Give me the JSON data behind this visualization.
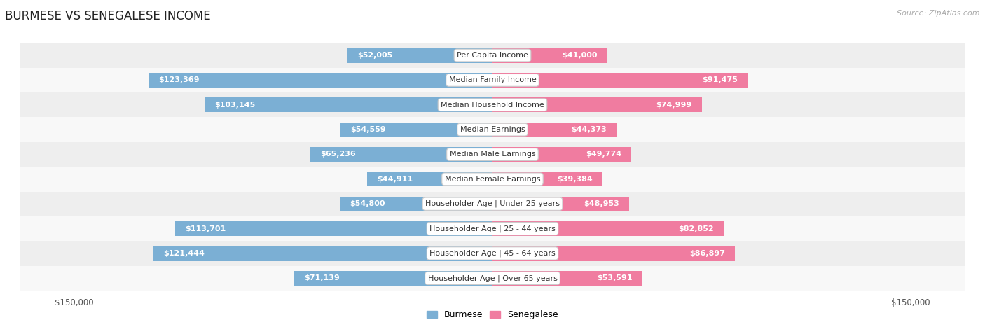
{
  "title": "BURMESE VS SENEGALESE INCOME",
  "source": "Source: ZipAtlas.com",
  "categories": [
    "Per Capita Income",
    "Median Family Income",
    "Median Household Income",
    "Median Earnings",
    "Median Male Earnings",
    "Median Female Earnings",
    "Householder Age | Under 25 years",
    "Householder Age | 25 - 44 years",
    "Householder Age | 45 - 64 years",
    "Householder Age | Over 65 years"
  ],
  "burmese_values": [
    52005,
    123369,
    103145,
    54559,
    65236,
    44911,
    54800,
    113701,
    121444,
    71139
  ],
  "senegalese_values": [
    41000,
    91475,
    74999,
    44373,
    49774,
    39384,
    48953,
    82852,
    86897,
    53591
  ],
  "burmese_labels": [
    "$52,005",
    "$123,369",
    "$103,145",
    "$54,559",
    "$65,236",
    "$44,911",
    "$54,800",
    "$113,701",
    "$121,444",
    "$71,139"
  ],
  "senegalese_labels": [
    "$41,000",
    "$91,475",
    "$74,999",
    "$44,373",
    "$49,774",
    "$39,384",
    "$48,953",
    "$82,852",
    "$86,897",
    "$53,591"
  ],
  "burmese_color": "#7bafd4",
  "senegalese_color": "#f07ca0",
  "max_value": 150000,
  "bg_color": "#ffffff",
  "row_bg_odd": "#eeeeee",
  "row_bg_even": "#f8f8f8",
  "label_color_inside": "#ffffff",
  "label_color_outside": "#555555",
  "inside_threshold": 30000,
  "title_fontsize": 12,
  "source_fontsize": 8,
  "bar_label_fontsize": 8,
  "category_fontsize": 8,
  "axis_label_fontsize": 8.5,
  "legend_fontsize": 9,
  "bar_height": 0.6,
  "legend_square_size": 10
}
